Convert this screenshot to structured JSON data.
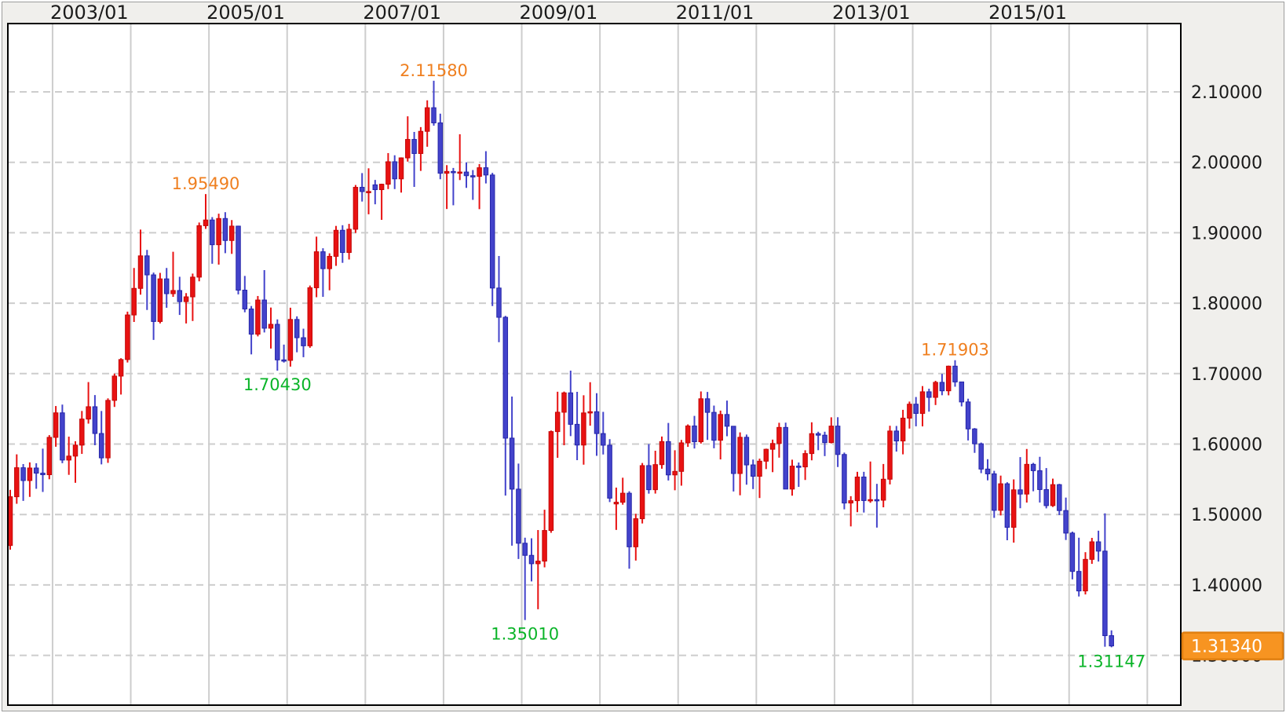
{
  "colors": {
    "outer_bg": "#f0efec",
    "frame": "#9c9c9c",
    "plot_bg": "#ffffff",
    "plot_border": "#000000",
    "grid": "#cdcdcd",
    "axis_text": "#1a1a1a",
    "bull_fill": "#e81212",
    "bull_border": "#c40808",
    "bear_fill": "#4343cb",
    "bear_border": "#2626a9",
    "annotation_high": "#ef7f1f",
    "annotation_low": "#0ab428",
    "badge_bg": "#f79421",
    "badge_border": "#e07f10",
    "badge_text": "#ffffff"
  },
  "chart_data": {
    "type": "candlestick",
    "period": "monthly",
    "start_month": "2002/06",
    "x_axis": {
      "tick_labels": [
        {
          "year": 2003,
          "label": "2003/01"
        },
        {
          "year": 2005,
          "label": "2005/01"
        },
        {
          "year": 2007,
          "label": "2007/01"
        },
        {
          "year": 2009,
          "label": "2009/01"
        },
        {
          "year": 2011,
          "label": "2011/01"
        },
        {
          "year": 2013,
          "label": "2013/01"
        },
        {
          "year": 2015,
          "label": "2015/01"
        }
      ],
      "gridline_years": [
        2003,
        2004,
        2005,
        2006,
        2007,
        2008,
        2009,
        2010,
        2011,
        2012,
        2013,
        2014,
        2015,
        2016,
        2017
      ]
    },
    "y_axis": {
      "ticks": [
        {
          "value": 2.1,
          "label": "2.10000"
        },
        {
          "value": 2.0,
          "label": "2.00000"
        },
        {
          "value": 1.9,
          "label": "1.90000"
        },
        {
          "value": 1.8,
          "label": "1.80000"
        },
        {
          "value": 1.7,
          "label": "1.70000"
        },
        {
          "value": 1.6,
          "label": "1.60000"
        },
        {
          "value": 1.5,
          "label": "1.50000"
        },
        {
          "value": 1.4,
          "label": "1.40000"
        },
        {
          "value": 1.3,
          "label": "1.30000"
        }
      ],
      "grid_dashed": true,
      "range_top": 2.197,
      "range_bottom": 1.229
    },
    "annotations": [
      {
        "text": "1.95490",
        "month_index": 30,
        "side": "high",
        "value": 1.9549
      },
      {
        "text": "1.70430",
        "month_index": 41,
        "side": "low",
        "value": 1.7043
      },
      {
        "text": "2.11580",
        "month_index": 65,
        "side": "high",
        "value": 2.1158
      },
      {
        "text": "1.35010",
        "month_index": 79,
        "side": "low",
        "value": 1.3501
      },
      {
        "text": "1.71903",
        "month_index": 145,
        "side": "high",
        "value": 1.71903
      },
      {
        "text": "1.31147",
        "month_index": 169,
        "side": "low",
        "value": 1.31147
      }
    ],
    "current_price_badge": {
      "text": "1.31340",
      "value": 1.3134
    },
    "candles": [
      [
        1.456,
        1.535,
        1.45,
        1.5252
      ],
      [
        1.5252,
        1.5854,
        1.5152,
        1.5664
      ],
      [
        1.5664,
        1.5716,
        1.5193,
        1.5482
      ],
      [
        1.5482,
        1.574,
        1.525,
        1.566
      ],
      [
        1.566,
        1.5728,
        1.5365,
        1.5587
      ],
      [
        1.5587,
        1.5935,
        1.532,
        1.5565
      ],
      [
        1.5565,
        1.6127,
        1.55,
        1.6095
      ],
      [
        1.6095,
        1.654,
        1.5962,
        1.6443
      ],
      [
        1.6443,
        1.656,
        1.5728,
        1.5773
      ],
      [
        1.5773,
        1.6105,
        1.5563,
        1.5829
      ],
      [
        1.5829,
        1.604,
        1.545,
        1.5985
      ],
      [
        1.5985,
        1.647,
        1.586,
        1.6355
      ],
      [
        1.6355,
        1.688,
        1.629,
        1.653
      ],
      [
        1.653,
        1.6696,
        1.5983,
        1.615
      ],
      [
        1.615,
        1.647,
        1.5712,
        1.5804
      ],
      [
        1.5804,
        1.6649,
        1.5733,
        1.662
      ],
      [
        1.662,
        1.7,
        1.6527,
        1.6965
      ],
      [
        1.6965,
        1.7219,
        1.6703,
        1.72
      ],
      [
        1.72,
        1.788,
        1.7158,
        1.7833
      ],
      [
        1.7833,
        1.85,
        1.7733,
        1.821
      ],
      [
        1.821,
        1.9045,
        1.8121,
        1.8672
      ],
      [
        1.8672,
        1.8756,
        1.7904,
        1.8402
      ],
      [
        1.8402,
        1.8434,
        1.7478,
        1.774
      ],
      [
        1.774,
        1.843,
        1.7712,
        1.8345
      ],
      [
        1.8345,
        1.85,
        1.7935,
        1.8135
      ],
      [
        1.8135,
        1.873,
        1.809,
        1.818
      ],
      [
        1.818,
        1.8375,
        1.7833,
        1.8022
      ],
      [
        1.8022,
        1.8143,
        1.7712,
        1.809
      ],
      [
        1.809,
        1.842,
        1.7747,
        1.837
      ],
      [
        1.837,
        1.9145,
        1.831,
        1.91
      ],
      [
        1.91,
        1.9549,
        1.9055,
        1.9181
      ],
      [
        1.9181,
        1.9222,
        1.856,
        1.883
      ],
      [
        1.883,
        1.927,
        1.8547,
        1.9202
      ],
      [
        1.9202,
        1.9292,
        1.871,
        1.889
      ],
      [
        1.889,
        1.918,
        1.87,
        1.9094
      ],
      [
        1.9094,
        1.91,
        1.8125,
        1.8185
      ],
      [
        1.8185,
        1.8387,
        1.7871,
        1.7918
      ],
      [
        1.7918,
        1.796,
        1.7273,
        1.756
      ],
      [
        1.756,
        1.8102,
        1.7529,
        1.8045
      ],
      [
        1.8045,
        1.847,
        1.7585,
        1.7645
      ],
      [
        1.7645,
        1.7938,
        1.7356,
        1.77
      ],
      [
        1.77,
        1.777,
        1.7043,
        1.7195
      ],
      [
        1.7195,
        1.7412,
        1.7157,
        1.7188
      ],
      [
        1.7188,
        1.7936,
        1.71,
        1.7769
      ],
      [
        1.7769,
        1.7813,
        1.7303,
        1.751
      ],
      [
        1.751,
        1.7638,
        1.7233,
        1.7395
      ],
      [
        1.7395,
        1.825,
        1.7367,
        1.8219
      ],
      [
        1.8219,
        1.8945,
        1.8085,
        1.873
      ],
      [
        1.873,
        1.878,
        1.809,
        1.849
      ],
      [
        1.849,
        1.8708,
        1.8183,
        1.8665
      ],
      [
        1.8665,
        1.9097,
        1.853,
        1.9035
      ],
      [
        1.9035,
        1.9107,
        1.8573,
        1.872
      ],
      [
        1.872,
        1.9126,
        1.862,
        1.905
      ],
      [
        1.905,
        1.9678,
        1.8997,
        1.9645
      ],
      [
        1.9645,
        1.9847,
        1.9443,
        1.9585
      ],
      [
        1.9585,
        1.9915,
        1.9262,
        1.9586
      ],
      [
        1.968,
        1.975,
        1.9404,
        1.9612
      ],
      [
        1.9612,
        1.9696,
        1.9183,
        1.9689
      ],
      [
        1.9689,
        2.0131,
        1.962,
        2.0008
      ],
      [
        2.0008,
        2.01,
        1.962,
        1.9765
      ],
      [
        1.9765,
        2.007,
        1.957,
        2.0063
      ],
      [
        2.0063,
        2.0653,
        2.001,
        2.0325
      ],
      [
        2.0325,
        2.0432,
        1.9651,
        2.0125
      ],
      [
        2.0125,
        2.05,
        1.9878,
        2.044
      ],
      [
        2.044,
        2.088,
        2.0221,
        2.0775
      ],
      [
        2.0775,
        2.1158,
        2.052,
        2.056
      ],
      [
        2.056,
        2.069,
        1.976,
        1.9845
      ],
      [
        1.9845,
        1.996,
        1.9337,
        1.987
      ],
      [
        1.987,
        1.992,
        1.939,
        1.986
      ],
      [
        1.986,
        2.0398,
        1.9748,
        1.9862
      ],
      [
        1.9862,
        2.0,
        1.9637,
        1.981
      ],
      [
        1.981,
        1.989,
        1.9467,
        1.98
      ],
      [
        1.98,
        1.9975,
        1.9335,
        1.9923
      ],
      [
        1.9923,
        2.0158,
        1.97,
        1.982
      ],
      [
        1.982,
        1.985,
        1.796,
        1.8215
      ],
      [
        1.8215,
        1.867,
        1.7446,
        1.78
      ],
      [
        1.78,
        1.782,
        1.5269,
        1.6084
      ],
      [
        1.6084,
        1.6675,
        1.4557,
        1.536
      ],
      [
        1.536,
        1.5722,
        1.4368,
        1.4592
      ],
      [
        1.4592,
        1.467,
        1.3501,
        1.442
      ],
      [
        1.442,
        1.4662,
        1.405,
        1.4301
      ],
      [
        1.4301,
        1.4779,
        1.3654,
        1.4338
      ],
      [
        1.4338,
        1.5068,
        1.425,
        1.4773
      ],
      [
        1.4773,
        1.6193,
        1.474,
        1.6177
      ],
      [
        1.6177,
        1.6743,
        1.5805,
        1.6452
      ],
      [
        1.6452,
        1.6745,
        1.5983,
        1.6727
      ],
      [
        1.6727,
        1.7042,
        1.6113,
        1.628
      ],
      [
        1.628,
        1.6741,
        1.5771,
        1.5986
      ],
      [
        1.5986,
        1.6693,
        1.5707,
        1.6442
      ],
      [
        1.6442,
        1.6878,
        1.6261,
        1.6459
      ],
      [
        1.6459,
        1.6722,
        1.5833,
        1.6149
      ],
      [
        1.6149,
        1.6457,
        1.5852,
        1.5984
      ],
      [
        1.5984,
        1.6069,
        1.5177,
        1.5232
      ],
      [
        1.515,
        1.5382,
        1.4781,
        1.5174
      ],
      [
        1.5174,
        1.5522,
        1.5139,
        1.5302
      ],
      [
        1.5302,
        1.533,
        1.423,
        1.4541
      ],
      [
        1.4541,
        1.501,
        1.4346,
        1.494
      ],
      [
        1.494,
        1.5731,
        1.4872,
        1.5694
      ],
      [
        1.5694,
        1.5999,
        1.5296,
        1.5352
      ],
      [
        1.5352,
        1.5905,
        1.5297,
        1.5708
      ],
      [
        1.5708,
        1.6107,
        1.565,
        1.6035
      ],
      [
        1.6035,
        1.6299,
        1.5483,
        1.5562
      ],
      [
        1.5562,
        1.5912,
        1.5344,
        1.5612
      ],
      [
        1.5612,
        1.6059,
        1.5409,
        1.6017
      ],
      [
        1.6017,
        1.6279,
        1.596,
        1.6257
      ],
      [
        1.6257,
        1.64,
        1.5937,
        1.6033
      ],
      [
        1.6033,
        1.6747,
        1.6007,
        1.6643
      ],
      [
        1.6643,
        1.674,
        1.6059,
        1.645
      ],
      [
        1.645,
        1.6546,
        1.594,
        1.6054
      ],
      [
        1.6054,
        1.6475,
        1.5782,
        1.642
      ],
      [
        1.642,
        1.6617,
        1.6111,
        1.6253
      ],
      [
        1.6253,
        1.6255,
        1.5327,
        1.5582
      ],
      [
        1.5582,
        1.6166,
        1.5272,
        1.6096
      ],
      [
        1.6096,
        1.6135,
        1.5423,
        1.5704
      ],
      [
        1.5704,
        1.578,
        1.5361,
        1.5543
      ],
      [
        1.5543,
        1.5793,
        1.5234,
        1.5757
      ],
      [
        1.5757,
        1.5935,
        1.5645,
        1.5926
      ],
      [
        1.5926,
        1.6063,
        1.5601,
        1.6008
      ],
      [
        1.6008,
        1.6302,
        1.5807,
        1.6236
      ],
      [
        1.6236,
        1.6304,
        1.5359,
        1.5361
      ],
      [
        1.5361,
        1.5778,
        1.5267,
        1.5687
      ],
      [
        1.5687,
        1.5738,
        1.5392,
        1.5676
      ],
      [
        1.5676,
        1.5912,
        1.549,
        1.5865
      ],
      [
        1.5865,
        1.6309,
        1.5769,
        1.6148
      ],
      [
        1.6148,
        1.6175,
        1.5913,
        1.6126
      ],
      [
        1.6126,
        1.6175,
        1.5829,
        1.6021
      ],
      [
        1.6021,
        1.638,
        1.6009,
        1.6255
      ],
      [
        1.6255,
        1.6381,
        1.5674,
        1.5852
      ],
      [
        1.5852,
        1.5879,
        1.5073,
        1.5163
      ],
      [
        1.5163,
        1.526,
        1.4831,
        1.5196
      ],
      [
        1.5196,
        1.5606,
        1.5033,
        1.5532
      ],
      [
        1.5532,
        1.5606,
        1.5028,
        1.5198
      ],
      [
        1.5198,
        1.5752,
        1.5166,
        1.5211
      ],
      [
        1.5211,
        1.5435,
        1.4814,
        1.5203
      ],
      [
        1.5203,
        1.5717,
        1.5102,
        1.5501
      ],
      [
        1.5501,
        1.626,
        1.5427,
        1.6185
      ],
      [
        1.6185,
        1.6257,
        1.5893,
        1.6044
      ],
      [
        1.6044,
        1.6486,
        1.5854,
        1.6368
      ],
      [
        1.6368,
        1.6603,
        1.622,
        1.6566
      ],
      [
        1.6566,
        1.6668,
        1.6252,
        1.6435
      ],
      [
        1.6435,
        1.6823,
        1.6251,
        1.6742
      ],
      [
        1.6742,
        1.6786,
        1.646,
        1.6663
      ],
      [
        1.6663,
        1.6898,
        1.6554,
        1.6876
      ],
      [
        1.6876,
        1.6996,
        1.6693,
        1.6756
      ],
      [
        1.6756,
        1.7113,
        1.6692,
        1.7106
      ],
      [
        1.7106,
        1.71903,
        1.6814,
        1.6882
      ],
      [
        1.6882,
        1.6886,
        1.6535,
        1.6598
      ],
      [
        1.6598,
        1.6644,
        1.6051,
        1.6215
      ],
      [
        1.6215,
        1.6227,
        1.5875,
        1.6004
      ],
      [
        1.6004,
        1.6021,
        1.5587,
        1.5645
      ],
      [
        1.5645,
        1.5785,
        1.5485,
        1.5577
      ],
      [
        1.5577,
        1.562,
        1.4952,
        1.5059
      ],
      [
        1.5059,
        1.5552,
        1.4987,
        1.5436
      ],
      [
        1.5436,
        1.5458,
        1.4634,
        1.4818
      ],
      [
        1.4818,
        1.5498,
        1.4601,
        1.535
      ],
      [
        1.535,
        1.5815,
        1.5089,
        1.529
      ],
      [
        1.529,
        1.593,
        1.517,
        1.5712
      ],
      [
        1.5712,
        1.5733,
        1.533,
        1.5622
      ],
      [
        1.5622,
        1.5819,
        1.517,
        1.5354
      ],
      [
        1.5354,
        1.5659,
        1.5087,
        1.5126
      ],
      [
        1.5126,
        1.5509,
        1.5107,
        1.5424
      ],
      [
        1.5424,
        1.5435,
        1.4992,
        1.5056
      ],
      [
        1.5056,
        1.524,
        1.4638,
        1.4736
      ],
      [
        1.4736,
        1.4757,
        1.4079,
        1.4192
      ],
      [
        1.4192,
        1.467,
        1.3836,
        1.3915
      ],
      [
        1.3915,
        1.4465,
        1.3865,
        1.4363
      ],
      [
        1.4363,
        1.4668,
        1.4299,
        1.4612
      ],
      [
        1.4612,
        1.477,
        1.4332,
        1.448
      ],
      [
        1.448,
        1.5016,
        1.3122,
        1.328
      ],
      [
        1.328,
        1.3355,
        1.31147,
        1.3134
      ]
    ]
  }
}
